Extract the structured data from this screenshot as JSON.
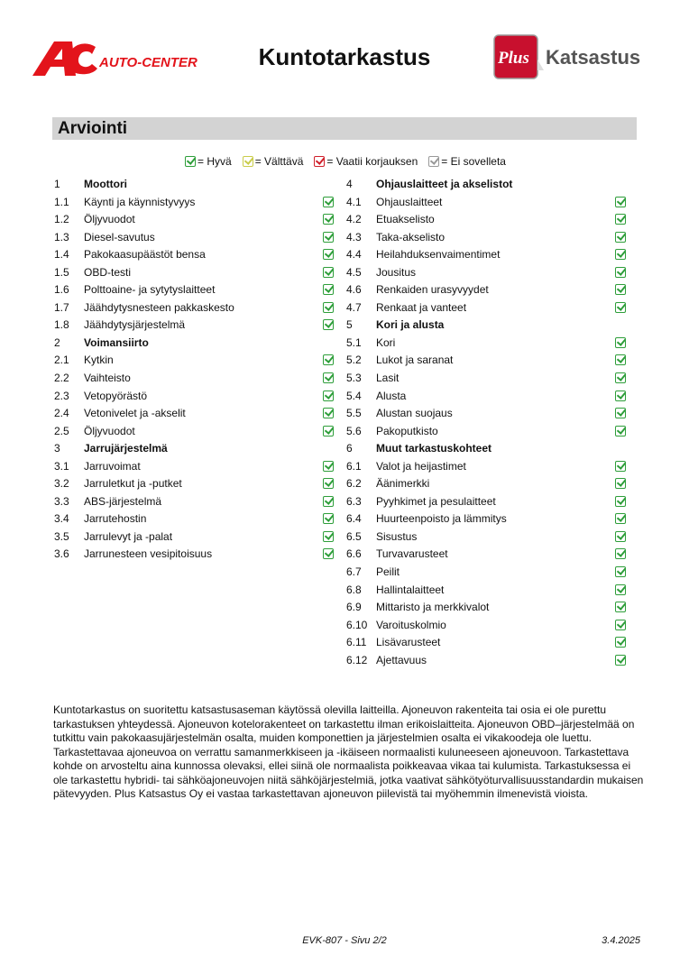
{
  "header": {
    "title": "Kuntotarkastus",
    "logo_left": "AC AUTO-CENTER",
    "logo_right": "Plus Katsastus",
    "colors": {
      "auto_center_red": "#e3141b",
      "plus_red": "#c8102e",
      "katsastus_gray": "#555555"
    }
  },
  "section": {
    "title": "Arviointi"
  },
  "legend": [
    {
      "status": "good",
      "label": "= Hyvä",
      "color": "#2e9e3a"
    },
    {
      "status": "ok",
      "label": "= Välttävä",
      "color": "#c9cc4a"
    },
    {
      "status": "bad",
      "label": "= Vaatii korjauksen",
      "color": "#d0202b"
    },
    {
      "status": "na",
      "label": "= Ei sovelleta",
      "color": "#999999"
    }
  ],
  "columns": [
    [
      {
        "num": "1",
        "label": "Moottori",
        "header": true
      },
      {
        "num": "1.1",
        "label": "Käynti ja käynnistyvyys",
        "status": "good"
      },
      {
        "num": "1.2",
        "label": "Öljyvuodot",
        "status": "good"
      },
      {
        "num": "1.3",
        "label": "Diesel-savutus",
        "status": "good"
      },
      {
        "num": "1.4",
        "label": "Pakokaasupäästöt bensa",
        "status": "good"
      },
      {
        "num": "1.5",
        "label": "OBD-testi",
        "status": "good"
      },
      {
        "num": "1.6",
        "label": "Polttoaine- ja sytytyslaitteet",
        "status": "good"
      },
      {
        "num": "1.7",
        "label": "Jäähdytysnesteen pakkaskesto",
        "status": "good"
      },
      {
        "num": "1.8",
        "label": "Jäähdytysjärjestelmä",
        "status": "good"
      },
      {
        "num": "2",
        "label": "Voimansiirto",
        "header": true
      },
      {
        "num": "2.1",
        "label": "Kytkin",
        "status": "good"
      },
      {
        "num": "2.2",
        "label": "Vaihteisto",
        "status": "good"
      },
      {
        "num": "2.3",
        "label": "Vetopyörästö",
        "status": "good"
      },
      {
        "num": "2.4",
        "label": "Vetonivelet ja -akselit",
        "status": "good"
      },
      {
        "num": "2.5",
        "label": "Öljyvuodot",
        "status": "good"
      },
      {
        "num": "3",
        "label": "Jarrujärjestelmä",
        "header": true
      },
      {
        "num": "3.1",
        "label": "Jarruvoimat",
        "status": "good"
      },
      {
        "num": "3.2",
        "label": "Jarruletkut ja -putket",
        "status": "good"
      },
      {
        "num": "3.3",
        "label": "ABS-järjestelmä",
        "status": "good"
      },
      {
        "num": "3.4",
        "label": "Jarrutehostin",
        "status": "good"
      },
      {
        "num": "3.5",
        "label": "Jarrulevyt ja -palat",
        "status": "good"
      },
      {
        "num": "3.6",
        "label": "Jarrunesteen vesipitoisuus",
        "status": "good"
      }
    ],
    [
      {
        "num": "4",
        "label": "Ohjauslaitteet ja akselistot",
        "header": true
      },
      {
        "num": "4.1",
        "label": "Ohjauslaitteet",
        "status": "good"
      },
      {
        "num": "4.2",
        "label": "Etuakselisto",
        "status": "good"
      },
      {
        "num": "4.3",
        "label": "Taka-akselisto",
        "status": "good"
      },
      {
        "num": "4.4",
        "label": "Heilahduksenvaimentimet",
        "status": "good"
      },
      {
        "num": "4.5",
        "label": "Jousitus",
        "status": "good"
      },
      {
        "num": "4.6",
        "label": "Renkaiden urasyvyydet",
        "status": "good"
      },
      {
        "num": "4.7",
        "label": "Renkaat ja vanteet",
        "status": "good"
      },
      {
        "num": "5",
        "label": "Kori ja alusta",
        "header": true
      },
      {
        "num": "5.1",
        "label": "Kori",
        "status": "good"
      },
      {
        "num": "5.2",
        "label": "Lukot ja saranat",
        "status": "good"
      },
      {
        "num": "5.3",
        "label": "Lasit",
        "status": "good"
      },
      {
        "num": "5.4",
        "label": "Alusta",
        "status": "good"
      },
      {
        "num": "5.5",
        "label": "Alustan suojaus",
        "status": "good"
      },
      {
        "num": "5.6",
        "label": "Pakoputkisto",
        "status": "good"
      },
      {
        "num": "6",
        "label": "Muut tarkastuskohteet",
        "header": true
      },
      {
        "num": "6.1",
        "label": "Valot ja heijastimet",
        "status": "good"
      },
      {
        "num": "6.2",
        "label": "Äänimerkki",
        "status": "good"
      },
      {
        "num": "6.3",
        "label": "Pyyhkimet ja pesulaitteet",
        "status": "good"
      },
      {
        "num": "6.4",
        "label": "Huurteenpoisto ja lämmitys",
        "status": "good"
      },
      {
        "num": "6.5",
        "label": "Sisustus",
        "status": "good"
      },
      {
        "num": "6.6",
        "label": "Turvavarusteet",
        "status": "good"
      },
      {
        "num": "6.7",
        "label": "Peilit",
        "status": "good"
      },
      {
        "num": "6.8",
        "label": "Hallintalaitteet",
        "status": "good"
      },
      {
        "num": "6.9",
        "label": "Mittaristo ja merkkivalot",
        "status": "good"
      },
      {
        "num": "6.10",
        "label": "Varoituskolmio",
        "status": "good"
      },
      {
        "num": "6.11",
        "label": "Lisävarusteet",
        "status": "good"
      },
      {
        "num": "6.12",
        "label": "Ajettavuus",
        "status": "good"
      }
    ]
  ],
  "disclaimer": "Kuntotarkastus on suoritettu katsastusaseman käytössä olevilla laitteilla. Ajoneuvon rakenteita tai osia ei ole purettu tarkastuksen yhteydessä. Ajoneuvon kotelorakenteet on tarkastettu ilman erikoislaitteita. Ajoneuvon OBD–järjestelmää on tutkittu vain pakokaasujärjestelmän osalta, muiden komponettien ja järjestelmien osalta ei vikakoodeja ole luettu. Tarkastettavaa ajoneuvoa on verrattu samanmerkkiseen ja -ikäiseen normaalisti kuluneeseen ajoneuvoon. Tarkastettava kohde on arvosteltu aina kunnossa olevaksi, ellei siinä ole normaalista poikkeavaa vikaa tai kulumista. Tarkastuksessa ei ole tarkastettu hybridi- tai sähköajoneuvojen niitä sähköjärjestelmiä, jotka vaativat sähkötyöturvallisuusstandardin mukaisen pätevyyden. Plus Katsastus Oy ei vastaa tarkastettavan ajoneuvon piilevistä tai myöhemmin ilmenevistä vioista.",
  "footer": {
    "page": "EVK-807 - Sivu 2/2",
    "date": "3.4.2025"
  }
}
